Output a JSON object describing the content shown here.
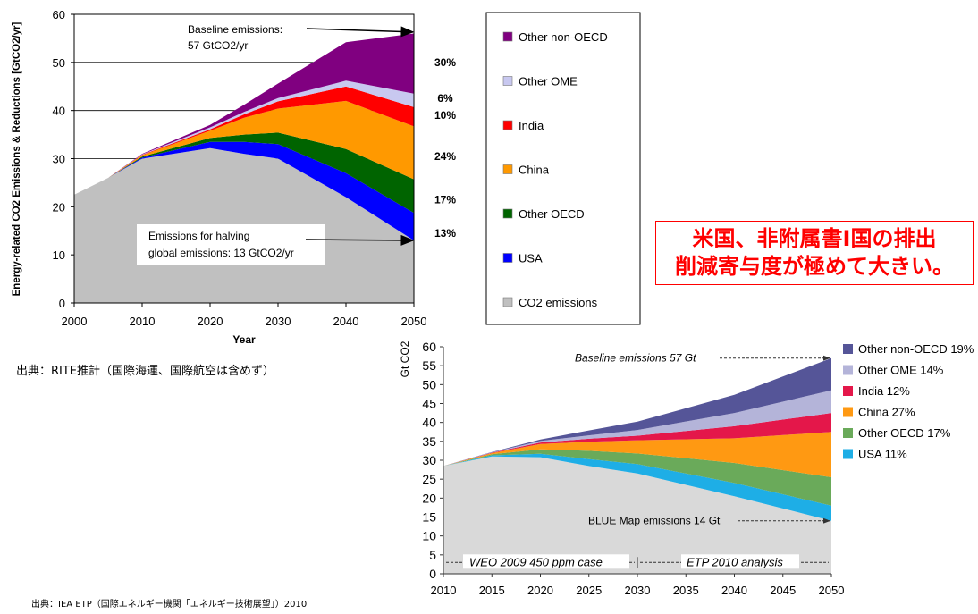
{
  "source_top": "出典：RITE推計（国際海運、国際航空は含めず）",
  "source_bottom": "出典：IEA ETP（国際エネルギー機関「エネルギー技術展望」）2010",
  "callout": {
    "line1": "米国、非附属書Ⅰ国の排出",
    "line2": "削減寄与度が極めて大きい。"
  },
  "chart_data": [
    {
      "type": "area",
      "stacked": true,
      "title": "",
      "xlabel": "Year",
      "ylabel": "Energy-related CO2 Emissions & Reductions [GtCO2/yr]",
      "xlim": [
        2000,
        2050
      ],
      "ylim": [
        0,
        60
      ],
      "x_ticks": [
        2000,
        2010,
        2020,
        2030,
        2040,
        2050
      ],
      "y_ticks": [
        0,
        10,
        20,
        30,
        40,
        50,
        60
      ],
      "grid": "horizontal",
      "legend_position": "right",
      "x": [
        2000,
        2005,
        2010,
        2020,
        2025,
        2030,
        2040,
        2050
      ],
      "series": [
        {
          "name": "CO2 emissions",
          "color": "#c0c0c0",
          "values": [
            22.5,
            26,
            30,
            32.2,
            31,
            30,
            22,
            13
          ]
        },
        {
          "name": "USA",
          "color": "#0000ff",
          "values": [
            0,
            0,
            0.2,
            1.3,
            2.5,
            3,
            5,
            5.7
          ]
        },
        {
          "name": "Other OECD",
          "color": "#006400",
          "values": [
            0,
            0,
            0.2,
            0.8,
            1.5,
            2.4,
            5,
            7
          ]
        },
        {
          "name": "China",
          "color": "#ff9900",
          "values": [
            0,
            0,
            0.3,
            1.5,
            3.5,
            5,
            10,
            11
          ]
        },
        {
          "name": "India",
          "color": "#ff0000",
          "values": [
            0,
            0,
            0.1,
            0.3,
            0.7,
            1.5,
            3,
            4
          ]
        },
        {
          "name": "Other OME",
          "color": "#c8c8f0",
          "values": [
            0,
            0,
            0.1,
            0.4,
            0.5,
            0.7,
            1.2,
            2.8
          ]
        },
        {
          "name": "Other non-OECD",
          "color": "#800080",
          "values": [
            0,
            0,
            0.1,
            0.5,
            1.5,
            3,
            8,
            12.5
          ]
        }
      ],
      "percent_labels": [
        {
          "text": "30%",
          "y": 50
        },
        {
          "text": "6%",
          "y": 42.5
        },
        {
          "text": "10%",
          "y": 39
        },
        {
          "text": "24%",
          "y": 30.5
        },
        {
          "text": "17%",
          "y": 21.5
        },
        {
          "text": "13%",
          "y": 14.5
        }
      ],
      "annotations": [
        {
          "lines": [
            "Baseline emissions:",
            "57 GtCO2/yr"
          ],
          "arrow_to": [
            2050,
            56.5
          ]
        },
        {
          "lines": [
            "Emissions for halving",
            "global emissions:  13 GtCO2/yr"
          ],
          "arrow_to": [
            2050,
            13
          ]
        }
      ]
    },
    {
      "type": "area",
      "stacked": true,
      "title": "",
      "xlabel": "",
      "ylabel": "Gt CO2",
      "xlim": [
        2010,
        2050
      ],
      "ylim": [
        0,
        60
      ],
      "x_ticks": [
        2010,
        2015,
        2020,
        2025,
        2030,
        2035,
        2040,
        2045,
        2050
      ],
      "y_ticks": [
        0,
        5,
        10,
        15,
        20,
        25,
        30,
        35,
        40,
        45,
        50,
        55,
        60
      ],
      "grid": "none",
      "legend_position": "right",
      "x": [
        2010,
        2015,
        2020,
        2025,
        2030,
        2040,
        2050
      ],
      "series": [
        {
          "name": "BLUE Map emissions",
          "color": "#d9d9d9",
          "values": [
            28.5,
            31,
            30.8,
            28.5,
            26.5,
            20.5,
            14
          ]
        },
        {
          "name": "USA 11%",
          "color": "#1eaee6",
          "values": [
            0,
            0.3,
            0.9,
            1.8,
            2.5,
            3.5,
            4
          ]
        },
        {
          "name": "Other OECD 17%",
          "color": "#6aaa5a",
          "values": [
            0,
            0.3,
            1.2,
            2.2,
            2.8,
            5.3,
            7.5
          ]
        },
        {
          "name": "China 27%",
          "color": "#ff9912",
          "values": [
            0,
            0.3,
            1.4,
            2.4,
            3.5,
            6.5,
            12
          ]
        },
        {
          "name": "India 12%",
          "color": "#e4174a",
          "values": [
            0,
            0.1,
            0.4,
            0.8,
            1.2,
            3.2,
            5
          ]
        },
        {
          "name": "Other OME 14%",
          "color": "#b4b4d9",
          "values": [
            0,
            0.1,
            0.4,
            0.9,
            1.5,
            3.5,
            6
          ]
        },
        {
          "name": "Other non-OECD 19%",
          "color": "#555598",
          "values": [
            0,
            0.1,
            0.4,
            1.3,
            2.2,
            4.8,
            8.5
          ]
        }
      ],
      "annotations": [
        {
          "text": "Baseline emissions 57 Gt",
          "y": 57
        },
        {
          "text": "BLUE Map emissions 14 Gt",
          "y": 14
        },
        {
          "text": "WEO 2009 450 ppm case",
          "x_range": [
            2010,
            2030
          ],
          "y": 3
        },
        {
          "text": "ETP 2010 analysis",
          "x_range": [
            2030,
            2050
          ],
          "y": 3
        }
      ]
    }
  ]
}
